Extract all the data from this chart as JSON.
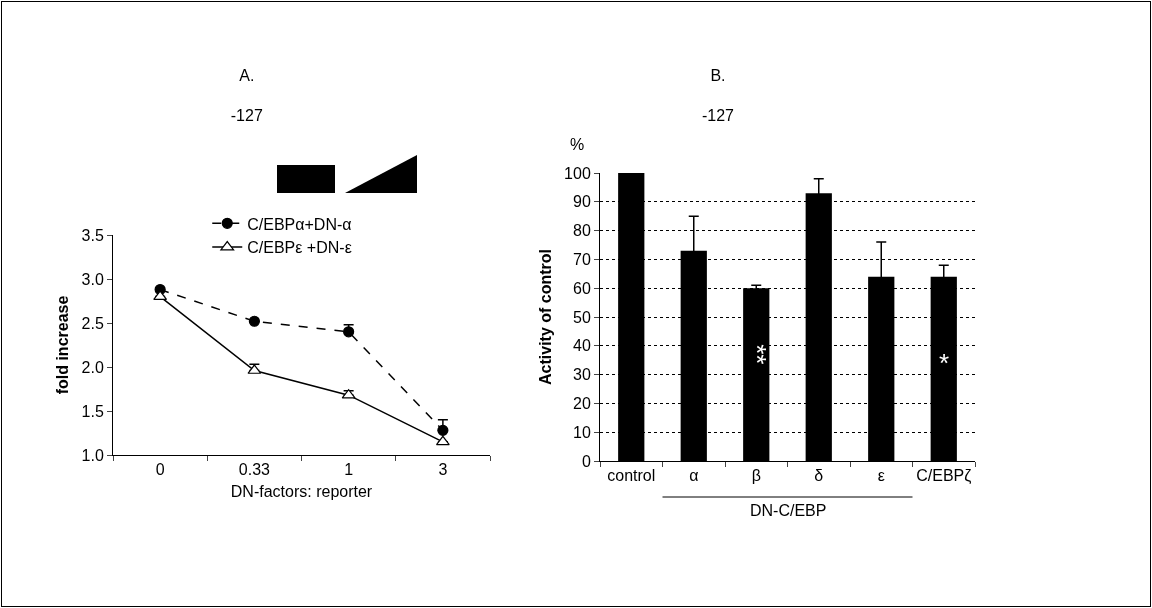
{
  "chart_data": [
    {
      "type": "line",
      "title": "A.",
      "subtitle": "-127",
      "xlabel": "DN-factors: reporter",
      "ylabel": "fold increase",
      "categories": [
        "0",
        "0.33",
        "1",
        "3"
      ],
      "series": [
        {
          "name": "C/EBPα+DN-α",
          "color": "#000000",
          "values": [
            2.88,
            2.52,
            2.4,
            1.28
          ],
          "errors": [
            null,
            null,
            [
              2.4,
              2.48
            ],
            [
              1.28,
              1.4
            ]
          ],
          "marker": "circle",
          "line_style": "dashed"
        },
        {
          "name": "C/EBPε +DN-ε",
          "color": "#000000",
          "values": [
            2.8,
            1.96,
            1.68,
            1.15
          ],
          "errors": [
            null,
            [
              1.96,
              2.03
            ],
            [
              1.68,
              1.73
            ],
            null
          ],
          "marker": "triangle",
          "line_style": "solid"
        }
      ],
      "ylim": [
        1.0,
        3.5
      ],
      "yticks": [
        {
          "value": 1.0,
          "label": "1.0"
        },
        {
          "value": 1.5,
          "label": "1.5"
        },
        {
          "value": 2.0,
          "label": "2.0"
        },
        {
          "value": 2.5,
          "label": "2.5"
        },
        {
          "value": 3.0,
          "label": "3.0"
        },
        {
          "value": 3.5,
          "label": "3.5"
        }
      ],
      "grid": false,
      "legend": "top"
    },
    {
      "type": "bar",
      "title": "B.",
      "subtitle": "-127",
      "ylabel": "Activity of control",
      "categories": [
        "control",
        "α",
        "β",
        "δ",
        "ε",
        "C/EBPζ"
      ],
      "values": [
        100,
        73,
        60,
        93,
        64,
        64
      ],
      "color": "#000000",
      "errors": [
        null,
        12,
        1,
        5,
        12,
        4
      ],
      "ylim": [
        0,
        100
      ],
      "yticks": [
        0,
        10,
        20,
        30,
        40,
        50,
        60,
        70,
        80,
        90,
        100
      ],
      "grid": "y",
      "legend": false,
      "annotations": [
        "%",
        "**",
        "*",
        "DN-C/EBP"
      ]
    }
  ]
}
